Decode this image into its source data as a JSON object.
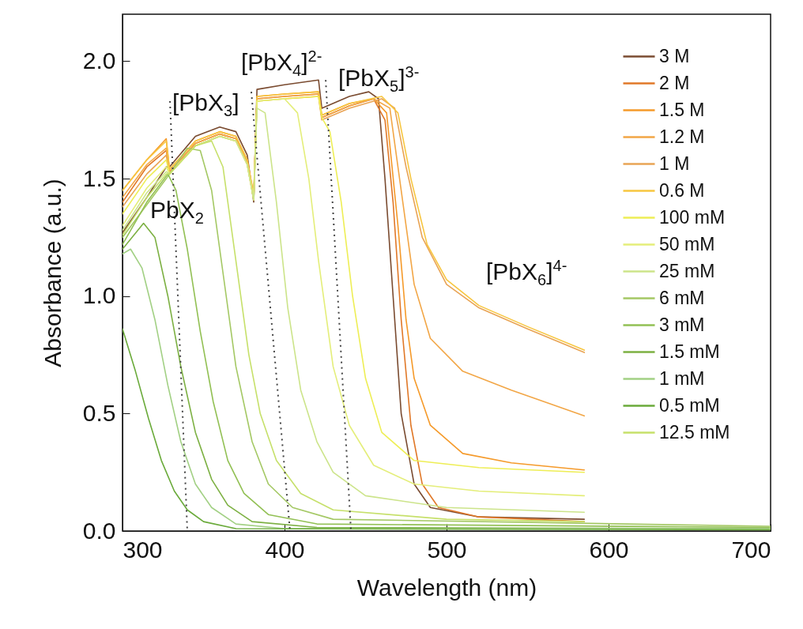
{
  "chart_data": {
    "type": "line",
    "xlabel": "Wavelength (nm)",
    "ylabel": "Absorbance (a.u.)",
    "xlim": [
      300,
      700
    ],
    "xticks": [
      300,
      400,
      500,
      600,
      700
    ],
    "ylim": [
      0,
      2.2
    ],
    "yticks": [
      {
        "value": 0,
        "label": "0.0"
      },
      0.5,
      {
        "value": 1,
        "label": "1.0"
      },
      1.5,
      {
        "value": 2,
        "label": "2.0"
      }
    ],
    "grid": false,
    "legend": "top right",
    "annotations": [
      "PbX$_{2}$",
      "[PbX$_{3}$]",
      "[PbX$_{4}$]$^{2-}$",
      "[PbX$_{5}$]$^{3-}$",
      "[PbX$_{6}$]$^{4-}$"
    ],
    "series": [
      {
        "name": "3 M",
        "color": "#7a4b30",
        "x": [
          300,
          315,
          327,
          329,
          345,
          360,
          370,
          377,
          381,
          383,
          400,
          421,
          423,
          440,
          452,
          458,
          462,
          467,
          472,
          480,
          490,
          520,
          585
        ],
        "values": [
          1.27,
          1.42,
          1.55,
          1.55,
          1.68,
          1.72,
          1.7,
          1.6,
          1.4,
          1.88,
          1.9,
          1.92,
          1.8,
          1.85,
          1.87,
          1.84,
          1.5,
          1.0,
          0.5,
          0.2,
          0.1,
          0.06,
          0.05
        ]
      },
      {
        "name": "2 M",
        "color": "#e07828",
        "x": [
          300,
          315,
          327,
          329,
          345,
          360,
          370,
          377,
          381,
          383,
          400,
          421,
          423,
          440,
          455,
          462,
          467,
          472,
          478,
          485,
          495,
          520,
          585
        ],
        "values": [
          1.4,
          1.55,
          1.62,
          1.53,
          1.65,
          1.69,
          1.67,
          1.57,
          1.42,
          1.84,
          1.85,
          1.86,
          1.76,
          1.81,
          1.84,
          1.75,
          1.4,
          0.9,
          0.45,
          0.2,
          0.1,
          0.06,
          0.04
        ]
      },
      {
        "name": "1.5 M",
        "color": "#f59a2a",
        "x": [
          300,
          315,
          327,
          329,
          345,
          360,
          370,
          377,
          381,
          383,
          400,
          421,
          423,
          440,
          455,
          463,
          470,
          475,
          480,
          490,
          510,
          540,
          585
        ],
        "values": [
          1.45,
          1.58,
          1.67,
          1.54,
          1.66,
          1.7,
          1.68,
          1.58,
          1.43,
          1.85,
          1.86,
          1.87,
          1.77,
          1.82,
          1.84,
          1.78,
          1.3,
          0.9,
          0.65,
          0.45,
          0.33,
          0.29,
          0.26
        ]
      },
      {
        "name": "1.2 M",
        "color": "#f2a646",
        "x": [
          300,
          315,
          327,
          329,
          345,
          360,
          370,
          377,
          381,
          383,
          400,
          421,
          423,
          440,
          455,
          465,
          472,
          480,
          490,
          510,
          540,
          585
        ],
        "values": [
          1.42,
          1.56,
          1.63,
          1.53,
          1.65,
          1.69,
          1.67,
          1.57,
          1.42,
          1.84,
          1.85,
          1.86,
          1.76,
          1.81,
          1.84,
          1.8,
          1.45,
          1.05,
          0.82,
          0.68,
          0.6,
          0.49
        ]
      },
      {
        "name": "1 M",
        "color": "#e9a455",
        "x": [
          300,
          315,
          327,
          329,
          345,
          360,
          370,
          377,
          381,
          383,
          400,
          421,
          423,
          440,
          460,
          468,
          475,
          485,
          500,
          520,
          550,
          585
        ],
        "values": [
          1.38,
          1.52,
          1.6,
          1.52,
          1.64,
          1.68,
          1.66,
          1.56,
          1.41,
          1.83,
          1.84,
          1.85,
          1.75,
          1.8,
          1.84,
          1.8,
          1.55,
          1.25,
          1.05,
          0.95,
          0.86,
          0.76
        ]
      },
      {
        "name": "0.6 M",
        "color": "#f7c640",
        "x": [
          300,
          315,
          327,
          329,
          345,
          360,
          370,
          377,
          381,
          383,
          400,
          421,
          423,
          440,
          460,
          470,
          478,
          488,
          500,
          520,
          550,
          585
        ],
        "values": [
          1.45,
          1.58,
          1.66,
          1.54,
          1.66,
          1.7,
          1.68,
          1.58,
          1.43,
          1.85,
          1.86,
          1.87,
          1.77,
          1.82,
          1.85,
          1.78,
          1.5,
          1.22,
          1.07,
          0.96,
          0.87,
          0.77
        ]
      },
      {
        "name": "100 mM",
        "color": "#eeee55",
        "x": [
          300,
          315,
          327,
          329,
          345,
          360,
          370,
          377,
          381,
          383,
          400,
          421,
          423,
          428,
          435,
          442,
          450,
          460,
          480,
          520,
          585
        ],
        "values": [
          1.35,
          1.5,
          1.58,
          1.52,
          1.64,
          1.68,
          1.66,
          1.56,
          1.41,
          1.83,
          1.84,
          1.85,
          1.76,
          1.7,
          1.4,
          1.0,
          0.65,
          0.42,
          0.3,
          0.27,
          0.25
        ]
      },
      {
        "name": "50 mM",
        "color": "#e4ee7a",
        "x": [
          300,
          315,
          327,
          329,
          345,
          360,
          370,
          377,
          381,
          383,
          400,
          408,
          415,
          421,
          423,
          430,
          440,
          455,
          480,
          520,
          585
        ],
        "values": [
          1.3,
          1.46,
          1.55,
          1.52,
          1.64,
          1.68,
          1.66,
          1.56,
          1.41,
          1.83,
          1.84,
          1.78,
          1.5,
          1.15,
          1.05,
          0.7,
          0.45,
          0.28,
          0.2,
          0.17,
          0.15
        ]
      },
      {
        "name": "25 mM",
        "color": "#cce48a",
        "x": [
          300,
          315,
          327,
          329,
          345,
          360,
          370,
          377,
          381,
          383,
          388,
          395,
          402,
          410,
          420,
          430,
          450,
          500,
          585
        ],
        "values": [
          1.28,
          1.44,
          1.53,
          1.52,
          1.64,
          1.68,
          1.66,
          1.56,
          1.41,
          1.8,
          1.78,
          1.4,
          0.95,
          0.6,
          0.38,
          0.25,
          0.15,
          0.1,
          0.08
        ]
      },
      {
        "name": "6 mM",
        "color": "#a4c864",
        "x": [
          300,
          327,
          329,
          340,
          348,
          355,
          362,
          370,
          380,
          390,
          405,
          430,
          700
        ],
        "values": [
          1.25,
          1.5,
          1.52,
          1.63,
          1.62,
          1.45,
          1.1,
          0.7,
          0.38,
          0.2,
          0.1,
          0.05,
          0.02
        ]
      },
      {
        "name": "3 mM",
        "color": "#92c054",
        "x": [
          300,
          315,
          328,
          333,
          340,
          348,
          356,
          365,
          375,
          390,
          420,
          700
        ],
        "values": [
          1.22,
          1.4,
          1.52,
          1.45,
          1.2,
          0.85,
          0.55,
          0.3,
          0.16,
          0.07,
          0.03,
          0.015
        ]
      },
      {
        "name": "1.5 mM",
        "color": "#7cb042",
        "x": [
          300,
          313,
          320,
          328,
          336,
          345,
          355,
          365,
          380,
          420,
          700
        ],
        "values": [
          1.2,
          1.31,
          1.25,
          1.0,
          0.7,
          0.42,
          0.22,
          0.11,
          0.04,
          0.015,
          0.01
        ]
      },
      {
        "name": "1 mM",
        "color": "#a2d084",
        "x": [
          300,
          305,
          312,
          320,
          328,
          336,
          345,
          355,
          370,
          400,
          700
        ],
        "values": [
          1.18,
          1.2,
          1.12,
          0.9,
          0.62,
          0.38,
          0.2,
          0.1,
          0.03,
          0.01,
          0.01
        ]
      },
      {
        "name": "0.5 mM",
        "color": "#6aaa3a",
        "x": [
          300,
          308,
          316,
          324,
          332,
          340,
          350,
          370,
          700
        ],
        "values": [
          0.86,
          0.68,
          0.48,
          0.3,
          0.17,
          0.09,
          0.04,
          0.01,
          0.005
        ]
      },
      {
        "name": "12.5 mM",
        "color": "#c6e06a",
        "x": [
          300,
          315,
          327,
          329,
          345,
          355,
          362,
          370,
          378,
          385,
          395,
          410,
          430,
          500,
          585
        ],
        "values": [
          1.26,
          1.42,
          1.52,
          1.52,
          1.64,
          1.66,
          1.55,
          1.15,
          0.75,
          0.5,
          0.3,
          0.16,
          0.09,
          0.05,
          0.04
        ]
      },
      {
        "color": "#444444",
        "line_style": "dotted",
        "x": [
          329.3,
          340
        ],
        "values": [
          1.83,
          0
        ]
      },
      {
        "color": "#444444",
        "line_style": "dotted",
        "x": [
          379.5,
          403.4
        ],
        "values": [
          1.87,
          0
        ]
      },
      {
        "color": "#444444",
        "line_style": "dotted",
        "x": [
          425.4,
          441
        ],
        "values": [
          1.92,
          0
        ]
      }
    ]
  }
}
